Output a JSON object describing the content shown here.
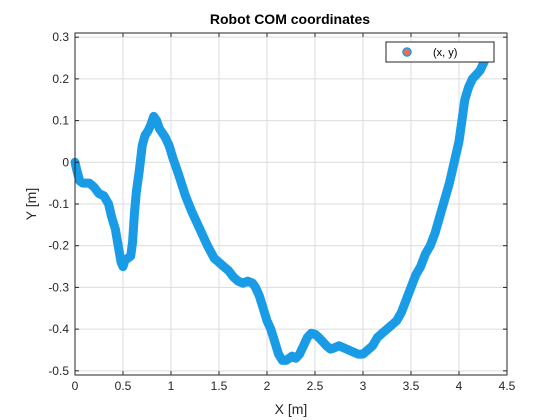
{
  "chart_data": {
    "type": "line",
    "title": "Robot COM coordinates",
    "xlabel": "X [m]",
    "ylabel": "Y [m]",
    "xlim": [
      0,
      4.5
    ],
    "ylim": [
      -0.51,
      0.31
    ],
    "xticks": [
      "0",
      "0.5",
      "1",
      "1.5",
      "2",
      "2.5",
      "3",
      "3.5",
      "4",
      "4.5"
    ],
    "xtick_values": [
      0,
      0.5,
      1,
      1.5,
      2,
      2.5,
      3,
      3.5,
      4,
      4.5
    ],
    "yticks": [
      "-0.5",
      "-0.4",
      "-0.3",
      "-0.2",
      "-0.1",
      "0",
      "0.1",
      "0.2",
      "0.3"
    ],
    "ytick_values": [
      -0.5,
      -0.4,
      -0.3,
      -0.2,
      -0.1,
      0,
      0.1,
      0.2,
      0.3
    ],
    "grid": true,
    "legend": {
      "placement": "top-right",
      "label": "(x, y)"
    },
    "series": [
      {
        "name": "(x, y)",
        "color": "#1a9be6",
        "marker_fill": "#f26b4f",
        "x": [
          0.0,
          0.02,
          0.05,
          0.08,
          0.15,
          0.2,
          0.25,
          0.3,
          0.35,
          0.38,
          0.42,
          0.45,
          0.48,
          0.5,
          0.52,
          0.55,
          0.58,
          0.6,
          0.62,
          0.64,
          0.67,
          0.7,
          0.73,
          0.76,
          0.79,
          0.82,
          0.85,
          0.88,
          0.91,
          0.94,
          0.98,
          1.02,
          1.08,
          1.15,
          1.22,
          1.3,
          1.38,
          1.45,
          1.5,
          1.55,
          1.6,
          1.65,
          1.7,
          1.75,
          1.8,
          1.85,
          1.88,
          1.92,
          1.96,
          2.0,
          2.04,
          2.08,
          2.12,
          2.16,
          2.2,
          2.23,
          2.26,
          2.3,
          2.34,
          2.38,
          2.42,
          2.46,
          2.5,
          2.54,
          2.58,
          2.62,
          2.66,
          2.7,
          2.75,
          2.8,
          2.85,
          2.9,
          2.95,
          3.0,
          3.05,
          3.1,
          3.15,
          3.2,
          3.25,
          3.3,
          3.35,
          3.4,
          3.45,
          3.5,
          3.55,
          3.6,
          3.65,
          3.7,
          3.75,
          3.8,
          3.85,
          3.9,
          3.95,
          4.0,
          4.03,
          4.06,
          4.1,
          4.14,
          4.18,
          4.22,
          4.26,
          4.3
        ],
        "y": [
          0.0,
          -0.02,
          -0.045,
          -0.05,
          -0.05,
          -0.06,
          -0.075,
          -0.08,
          -0.1,
          -0.13,
          -0.16,
          -0.2,
          -0.24,
          -0.25,
          -0.235,
          -0.23,
          -0.225,
          -0.19,
          -0.12,
          -0.07,
          -0.02,
          0.04,
          0.065,
          0.075,
          0.09,
          0.11,
          0.1,
          0.08,
          0.07,
          0.06,
          0.04,
          0.01,
          -0.03,
          -0.08,
          -0.12,
          -0.16,
          -0.2,
          -0.23,
          -0.24,
          -0.25,
          -0.26,
          -0.275,
          -0.285,
          -0.29,
          -0.285,
          -0.29,
          -0.3,
          -0.32,
          -0.35,
          -0.38,
          -0.4,
          -0.43,
          -0.46,
          -0.475,
          -0.475,
          -0.47,
          -0.465,
          -0.47,
          -0.46,
          -0.44,
          -0.42,
          -0.41,
          -0.412,
          -0.42,
          -0.43,
          -0.44,
          -0.448,
          -0.445,
          -0.44,
          -0.445,
          -0.45,
          -0.455,
          -0.46,
          -0.46,
          -0.45,
          -0.44,
          -0.42,
          -0.41,
          -0.4,
          -0.39,
          -0.38,
          -0.36,
          -0.33,
          -0.3,
          -0.27,
          -0.25,
          -0.22,
          -0.2,
          -0.17,
          -0.13,
          -0.09,
          -0.05,
          0.0,
          0.05,
          0.1,
          0.15,
          0.18,
          0.2,
          0.21,
          0.22,
          0.24,
          0.27
        ]
      }
    ]
  }
}
